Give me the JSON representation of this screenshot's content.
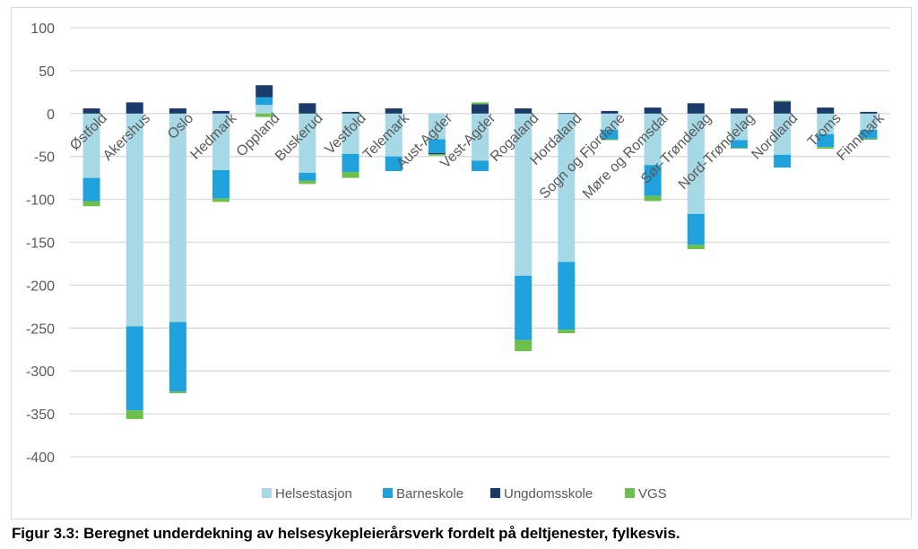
{
  "caption": "Figur 3.3: Beregnet underdekning av helsesykepleierårsverk fordelt på deltjenester, fylkesvis.",
  "chart_data": {
    "type": "bar",
    "stacked": true,
    "title": "",
    "xlabel": "",
    "ylabel": "",
    "ylim": [
      -400,
      100
    ],
    "yticks": [
      100,
      50,
      0,
      -50,
      -100,
      -150,
      -200,
      -250,
      -300,
      -350,
      -400
    ],
    "grid": true,
    "legend_position": "bottom",
    "categories": [
      "Østfold",
      "Akershus",
      "Oslo",
      "Hedmark",
      "Oppland",
      "Buskerud",
      "Vestfold",
      "Telemark",
      "Aust-Agder",
      "Vest-Agder",
      "Rogaland",
      "Hordaland",
      "Sogn og Fjordane",
      "Møre og Romsdal",
      "Sør-Trøndelag",
      "Nord-Trøndelag",
      "Nordland",
      "Troms",
      "Finnmark"
    ],
    "series": [
      {
        "name": "Helsestasjon",
        "color": "#a6d8e6",
        "values": [
          -75,
          -248,
          -243,
          -66,
          10,
          -69,
          -47,
          -50,
          -30,
          -55,
          -189,
          -173,
          -19,
          -60,
          -117,
          -31,
          -48,
          -24,
          -19
        ]
      },
      {
        "name": "Barneskole",
        "color": "#1ea1dc",
        "values": [
          -27,
          -98,
          -81,
          -33,
          9,
          -9,
          -21,
          -17,
          -16,
          -12,
          -75,
          -79,
          -11,
          -36,
          -36,
          -9,
          -15,
          -15,
          -10
        ]
      },
      {
        "name": "Ungdomsskole",
        "color": "#1a3a6b",
        "values": [
          6,
          13,
          6,
          3,
          14,
          12,
          2,
          6,
          -1.5,
          11,
          6,
          0.5,
          3,
          7,
          12,
          6,
          14,
          7,
          2
        ]
      },
      {
        "name": "VGS",
        "color": "#6dbf4b",
        "values": [
          -6,
          -10,
          -2,
          -4,
          -4,
          -4,
          -7,
          0,
          -1.5,
          2,
          -13,
          -4,
          -1,
          -6,
          -5,
          -1,
          1,
          -2,
          -1.5
        ]
      }
    ]
  }
}
